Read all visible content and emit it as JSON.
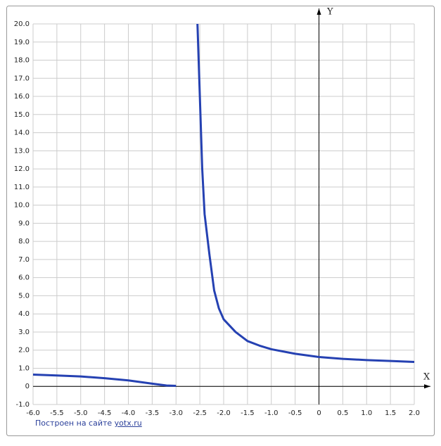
{
  "chart_data": {
    "type": "line",
    "x_label": "X",
    "y_label": "Y",
    "xlim": [
      -6,
      2
    ],
    "ylim": [
      -1,
      20
    ],
    "xticks": [
      {
        "value": -6,
        "label": "-6.0"
      },
      -5.5,
      {
        "value": -5,
        "label": "-5.0"
      },
      -4.5,
      {
        "value": -4,
        "label": "-4.0"
      },
      -3.5,
      {
        "value": -3,
        "label": "-3.0"
      },
      -2.5,
      {
        "value": -2,
        "label": "-2.0"
      },
      -1.5,
      {
        "value": -1,
        "label": "-1.0"
      },
      -0.5,
      0,
      0.5,
      {
        "value": 1,
        "label": "1.0"
      },
      1.5,
      {
        "value": 2,
        "label": "2.0"
      }
    ],
    "yticks": [
      {
        "value": -1,
        "label": "-1.0"
      },
      0,
      {
        "value": 1,
        "label": "1.0"
      },
      {
        "value": 2,
        "label": "2.0"
      },
      {
        "value": 3,
        "label": "3.0"
      },
      {
        "value": 4,
        "label": "4.0"
      },
      {
        "value": 5,
        "label": "5.0"
      },
      {
        "value": 6,
        "label": "6.0"
      },
      {
        "value": 7,
        "label": "7.0"
      },
      {
        "value": 8,
        "label": "8.0"
      },
      {
        "value": 9,
        "label": "9.0"
      },
      {
        "value": 10,
        "label": "10.0"
      },
      {
        "value": 11,
        "label": "11.0"
      },
      {
        "value": 12,
        "label": "12.0"
      },
      {
        "value": 13,
        "label": "13.0"
      },
      {
        "value": 14,
        "label": "14.0"
      },
      {
        "value": 15,
        "label": "15.0"
      },
      {
        "value": 16,
        "label": "16.0"
      },
      {
        "value": 17,
        "label": "17.0"
      },
      {
        "value": 18,
        "label": "18.0"
      },
      {
        "value": 19,
        "label": "19.0"
      },
      {
        "value": 20,
        "label": "20.0"
      }
    ],
    "grid": true,
    "series": [
      {
        "color": "#2541b2",
        "x": [
          -6,
          -5.5,
          -5,
          -4.5,
          -4,
          -3.5,
          -3.2,
          -3,
          -2.8,
          -2.55,
          -2.5,
          -2.45,
          -2.4,
          -2.3,
          -2.2,
          -2.1,
          -2,
          -1.75,
          -1.5,
          -1.25,
          -1,
          -0.5,
          0,
          0.5,
          1,
          1.5,
          2
        ],
        "values": [
          0.65,
          0.6,
          0.55,
          0.45,
          0.33,
          0.15,
          0.05,
          0.03,
          null,
          20,
          16,
          12,
          9.5,
          7.3,
          5.3,
          4.3,
          3.7,
          3.0,
          2.5,
          2.25,
          2.05,
          1.8,
          1.62,
          1.52,
          1.45,
          1.4,
          1.35
        ]
      }
    ],
    "footer_text": "Построен на сайте",
    "footer_link": "yotx.ru"
  }
}
